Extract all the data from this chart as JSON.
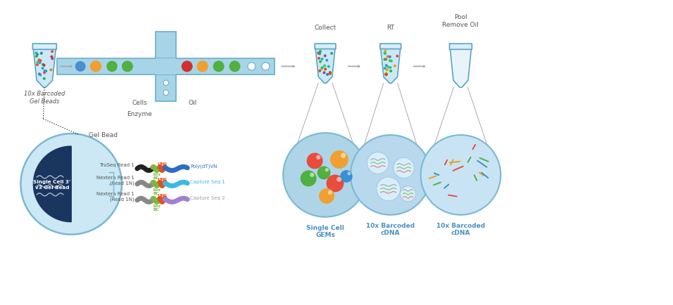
{
  "bg_color": "#ffffff",
  "tube_fill": "#cce8f4",
  "tube_cap": "#daeef8",
  "tube_outline": "#5ba3c9",
  "chip_fill": "#a8d4e8",
  "chip_outline": "#6aaec8",
  "arrow_color": "#b0b0b0",
  "text_color": "#555555",
  "label_blue": "#4a90c4",
  "dark_navy": "#1a3560",
  "gel_bead_outer": "#cce8f4",
  "gel_bead_outline": "#7ab8d4",
  "gems_fill": "#aed4e8",
  "cdna1_fill": "#b8d8ee",
  "cdna2_fill": "#c8e4f4",
  "dot_colors": [
    "#e74c3c",
    "#27ae60",
    "#2980b9",
    "#f39c12",
    "#8e44ad",
    "#16a085",
    "#e67e22",
    "#c0392b",
    "#1abc9c",
    "#d35400",
    "#2ecc71",
    "#3498db"
  ],
  "strand1_colors": [
    "#222222",
    "#7cb840",
    "#e05020",
    "#2b6ec8"
  ],
  "strand2_colors": [
    "#888888",
    "#7cb840",
    "#e05020",
    "#3ab8e8"
  ],
  "strand3_colors": [
    "#888888",
    "#7cb840",
    "#e05020",
    "#a080d0"
  ],
  "labels": {
    "gel_beads": "10x Barcoded\nGel Beads",
    "cells": "Cells",
    "enzyme": "Enzyme",
    "oil": "Oil",
    "collect": "Collect",
    "rt": "RT",
    "pool_remove": "Pool\nRemove Oil",
    "single_cell_gems": "Single Cell\nGEMs",
    "barcoded_cdna1": "10x Barcoded\ncDNA",
    "barcoded_cdna2": "10x Barcoded\ncDNA",
    "gel_bead_label": "Gel Bead",
    "single_cell_v3": "Single Cell 3'\nv3 Gel Bead",
    "truseq_read1": "TruSeq Read 1",
    "nextera_read1a": "Nextera Read 1\n(Read 1N)",
    "nextera_read1b": "Nextera Read 1\n(Read 1N)",
    "poly_label": "Poly(dT)VN",
    "capture1_label": "Capture Seq 1",
    "capture2_label": "Capture Seq 2"
  }
}
